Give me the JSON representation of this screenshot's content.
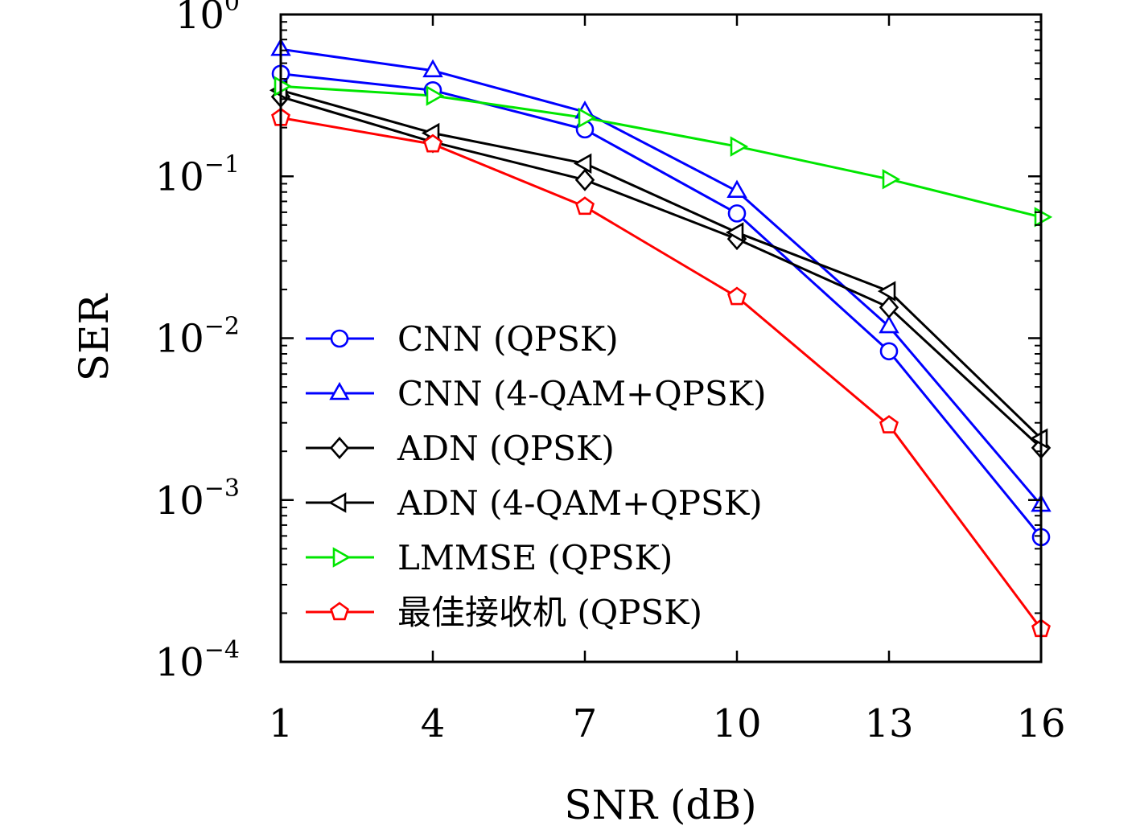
{
  "chart_data": {
    "type": "line",
    "xlabel": "SNR (dB)",
    "ylabel": "SER",
    "x": [
      1,
      4,
      7,
      10,
      13,
      16
    ],
    "x_tick_labels": [
      "1",
      "4",
      "7",
      "10",
      "13",
      "16"
    ],
    "xlim": [
      1,
      16
    ],
    "y_scale": "log",
    "ylim": [
      0.0001,
      1
    ],
    "y_ticks": [
      {
        "base": "10",
        "exp": "0"
      },
      {
        "base": "10",
        "exp": "−1"
      },
      {
        "base": "10",
        "exp": "−2"
      },
      {
        "base": "10",
        "exp": "−3"
      },
      {
        "base": "10",
        "exp": "−4"
      }
    ],
    "grid": false,
    "legend_position": "lower-left",
    "series": [
      {
        "name": "CNN (QPSK)",
        "color": "#0000ff",
        "marker": "circle",
        "values": [
          0.43,
          0.34,
          0.195,
          0.059,
          0.0083,
          0.00059
        ]
      },
      {
        "name": "CNN (4-QAM+QPSK)",
        "color": "#0000ff",
        "marker": "triangle-up",
        "values": [
          0.61,
          0.45,
          0.25,
          0.081,
          0.0118,
          0.00093
        ]
      },
      {
        "name": "ADN (QPSK)",
        "color": "#000000",
        "marker": "diamond",
        "values": [
          0.31,
          0.163,
          0.095,
          0.041,
          0.0155,
          0.0021
        ]
      },
      {
        "name": "ADN (4-QAM+QPSK)",
        "color": "#000000",
        "marker": "triangle-left",
        "values": [
          0.34,
          0.185,
          0.12,
          0.045,
          0.0195,
          0.0024
        ]
      },
      {
        "name": "LMMSE (QPSK)",
        "color": "#00e600",
        "marker": "triangle-right",
        "values": [
          0.36,
          0.315,
          0.23,
          0.153,
          0.096,
          0.056
        ]
      },
      {
        "name": "最佳接收机 (QPSK)",
        "color": "#ff0000",
        "marker": "pentagon",
        "values": [
          0.23,
          0.158,
          0.065,
          0.018,
          0.0029,
          0.00016
        ]
      }
    ]
  }
}
